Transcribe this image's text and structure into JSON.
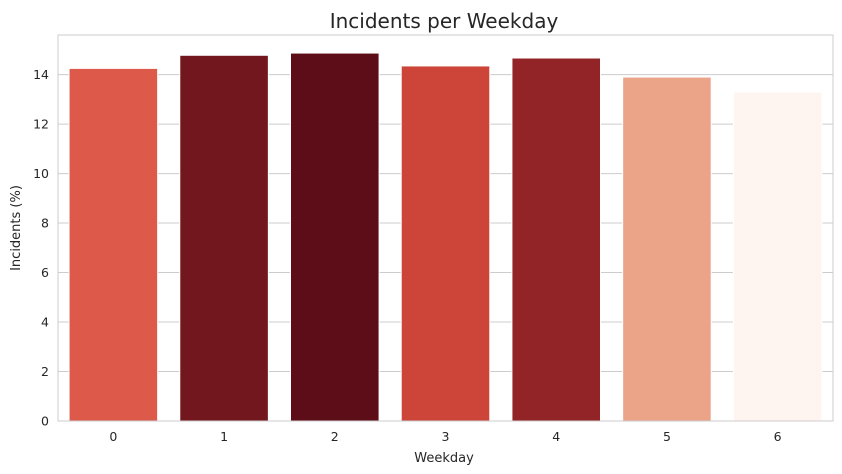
{
  "chart_data": {
    "type": "bar",
    "title": "Incidents per Weekday",
    "xlabel": "Weekday",
    "ylabel": "Incidents (%)",
    "categories": [
      "0",
      "1",
      "2",
      "3",
      "4",
      "5",
      "6"
    ],
    "values": [
      14.25,
      14.78,
      14.87,
      14.35,
      14.67,
      13.9,
      13.3
    ],
    "colors": [
      "#dd5a4b",
      "#73171e",
      "#5c0d17",
      "#cd4439",
      "#922326",
      "#eca489",
      "#fff5f0"
    ],
    "ylim": [
      0,
      15.6
    ],
    "yticks": [
      0,
      2,
      4,
      6,
      8,
      10,
      12,
      14
    ],
    "grid": true,
    "legend": "none"
  }
}
